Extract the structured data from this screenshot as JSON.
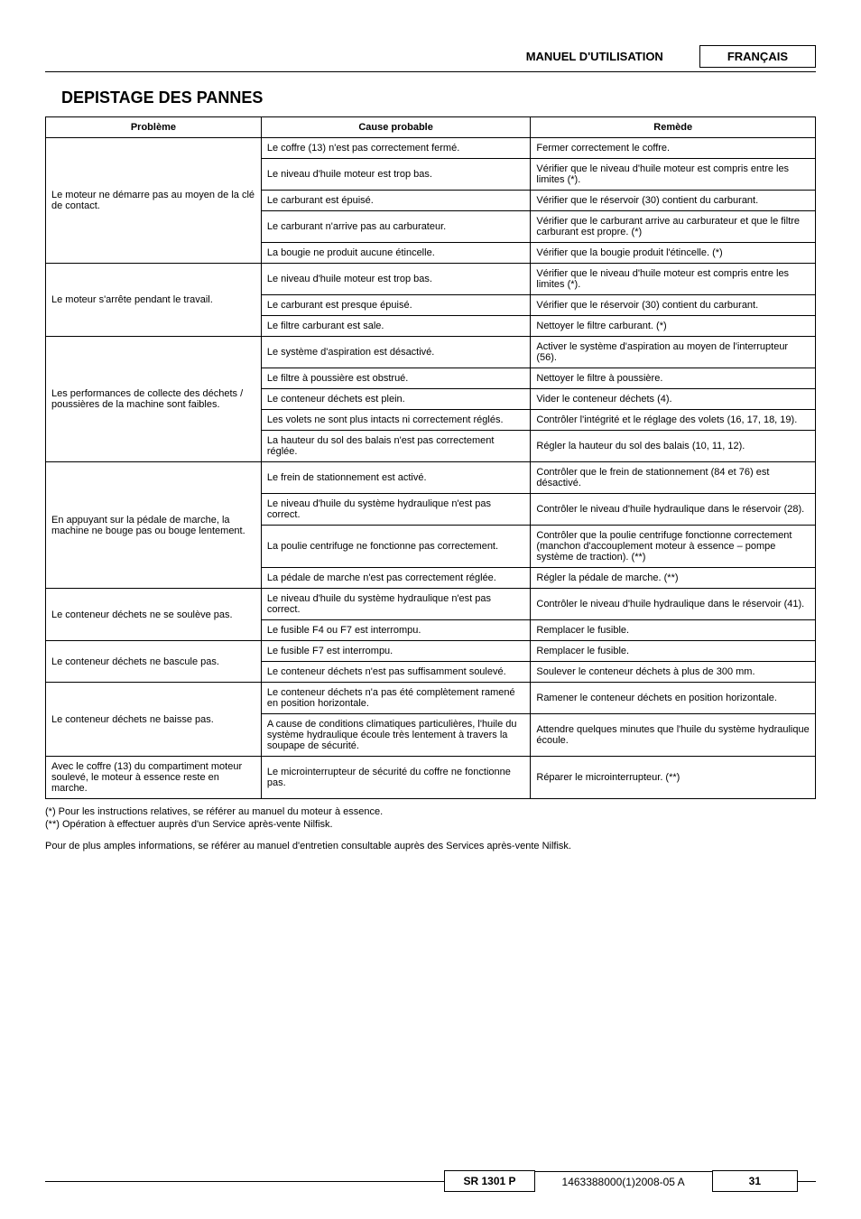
{
  "header": {
    "manual_label": "MANUEL D'UTILISATION",
    "language": "FRANÇAIS"
  },
  "section_title": "DEPISTAGE DES PANNES",
  "table": {
    "headers": {
      "problem": "Problème",
      "cause": "Cause probable",
      "remedy": "Remède"
    },
    "groups": [
      {
        "problem": "Le moteur ne démarre pas au moyen de la clé de contact.",
        "rows": [
          {
            "cause": "Le coffre (13) n'est pas correctement fermé.",
            "remedy": "Fermer correctement le coffre."
          },
          {
            "cause": "Le niveau d'huile moteur est trop bas.",
            "remedy": "Vérifier que le niveau d'huile moteur est compris entre les limites (*)."
          },
          {
            "cause": "Le carburant est épuisé.",
            "remedy": "Vérifier que le réservoir (30) contient du carburant."
          },
          {
            "cause": "Le carburant n'arrive pas au carburateur.",
            "remedy": "Vérifier que le carburant arrive au carburateur et que le filtre carburant est propre. (*)"
          },
          {
            "cause": "La bougie ne produit aucune étincelle.",
            "remedy": "Vérifier que la bougie produit l'étincelle. (*)"
          }
        ]
      },
      {
        "problem": "Le moteur s'arrête pendant le travail.",
        "rows": [
          {
            "cause": "Le niveau d'huile moteur est trop bas.",
            "remedy": "Vérifier que le niveau d'huile moteur est compris entre les limites (*)."
          },
          {
            "cause": "Le carburant est presque épuisé.",
            "remedy": "Vérifier que le réservoir (30) contient du carburant."
          },
          {
            "cause": "Le filtre carburant est sale.",
            "remedy": "Nettoyer le filtre carburant. (*)"
          }
        ]
      },
      {
        "problem": "Les performances de collecte des déchets / poussières de la machine sont faibles.",
        "rows": [
          {
            "cause": "Le système d'aspiration est désactivé.",
            "remedy": "Activer le système d'aspiration au moyen de l'interrupteur (56)."
          },
          {
            "cause": "Le filtre à poussière est obstrué.",
            "remedy": "Nettoyer le filtre à poussière."
          },
          {
            "cause": "Le conteneur déchets est plein.",
            "remedy": "Vider le conteneur déchets (4)."
          },
          {
            "cause": "Les volets ne sont plus intacts ni correctement réglés.",
            "remedy": "Contrôler l'intégrité et le réglage des volets (16, 17, 18, 19)."
          },
          {
            "cause": "La hauteur du sol des balais n'est pas correctement réglée.",
            "remedy": "Régler la hauteur du sol des balais (10, 11, 12)."
          }
        ]
      },
      {
        "problem": "En appuyant sur la pédale de marche, la machine ne bouge pas ou bouge lentement.",
        "rows": [
          {
            "cause": "Le frein de stationnement est activé.",
            "remedy": "Contrôler que le frein de stationnement (84 et 76) est désactivé."
          },
          {
            "cause": "Le niveau d'huile du système hydraulique n'est pas correct.",
            "remedy": "Contrôler le niveau d'huile hydraulique dans le réservoir (28)."
          },
          {
            "cause": "La poulie centrifuge ne fonctionne pas correctement.",
            "remedy": "Contrôler que la poulie centrifuge fonctionne correctement (manchon d'accouplement moteur à essence – pompe système de traction). (**)"
          },
          {
            "cause": "La pédale de marche n'est pas correctement réglée.",
            "remedy": "Régler la pédale de marche. (**)"
          }
        ]
      },
      {
        "problem": "Le conteneur déchets ne se soulève pas.",
        "rows": [
          {
            "cause": "Le niveau d'huile du système hydraulique n'est pas correct.",
            "remedy": "Contrôler le niveau d'huile hydraulique dans le réservoir (41)."
          },
          {
            "cause": "Le fusible F4 ou F7 est interrompu.",
            "remedy": "Remplacer le fusible."
          }
        ]
      },
      {
        "problem": "Le conteneur déchets ne bascule pas.",
        "rows": [
          {
            "cause": "Le fusible F7 est interrompu.",
            "remedy": "Remplacer le fusible."
          },
          {
            "cause": "Le conteneur déchets n'est pas suffisamment soulevé.",
            "remedy": "Soulever le conteneur déchets à plus de 300 mm."
          }
        ]
      },
      {
        "problem": "Le conteneur déchets ne baisse pas.",
        "rows": [
          {
            "cause": "Le conteneur déchets n'a pas été complètement ramené en position horizontale.",
            "remedy": "Ramener le conteneur déchets en position horizontale."
          },
          {
            "cause": "A cause de conditions climatiques particulières, l'huile du système hydraulique écoule très lentement à travers la soupape de sécurité.",
            "remedy": "Attendre quelques minutes que l'huile du système hydraulique écoule."
          }
        ]
      },
      {
        "problem": "Avec le coffre (13) du compartiment moteur soulevé, le moteur à essence reste en marche.",
        "rows": [
          {
            "cause": "Le microinterrupteur de sécurité du coffre ne fonctionne pas.",
            "remedy": "Réparer le microinterrupteur. (**)"
          }
        ]
      }
    ]
  },
  "notes": {
    "n1": "(*)   Pour les instructions relatives, se référer au manuel du moteur à essence.",
    "n2": "(**)  Opération à effectuer auprès d'un Service après-vente Nilfisk.",
    "n3": "Pour de plus amples informations, se référer au manuel d'entretien consultable auprès des Services après-vente Nilfisk."
  },
  "footer": {
    "model": "SR 1301 P",
    "doc": "1463388000(1)2008-05 A",
    "page": "31"
  }
}
